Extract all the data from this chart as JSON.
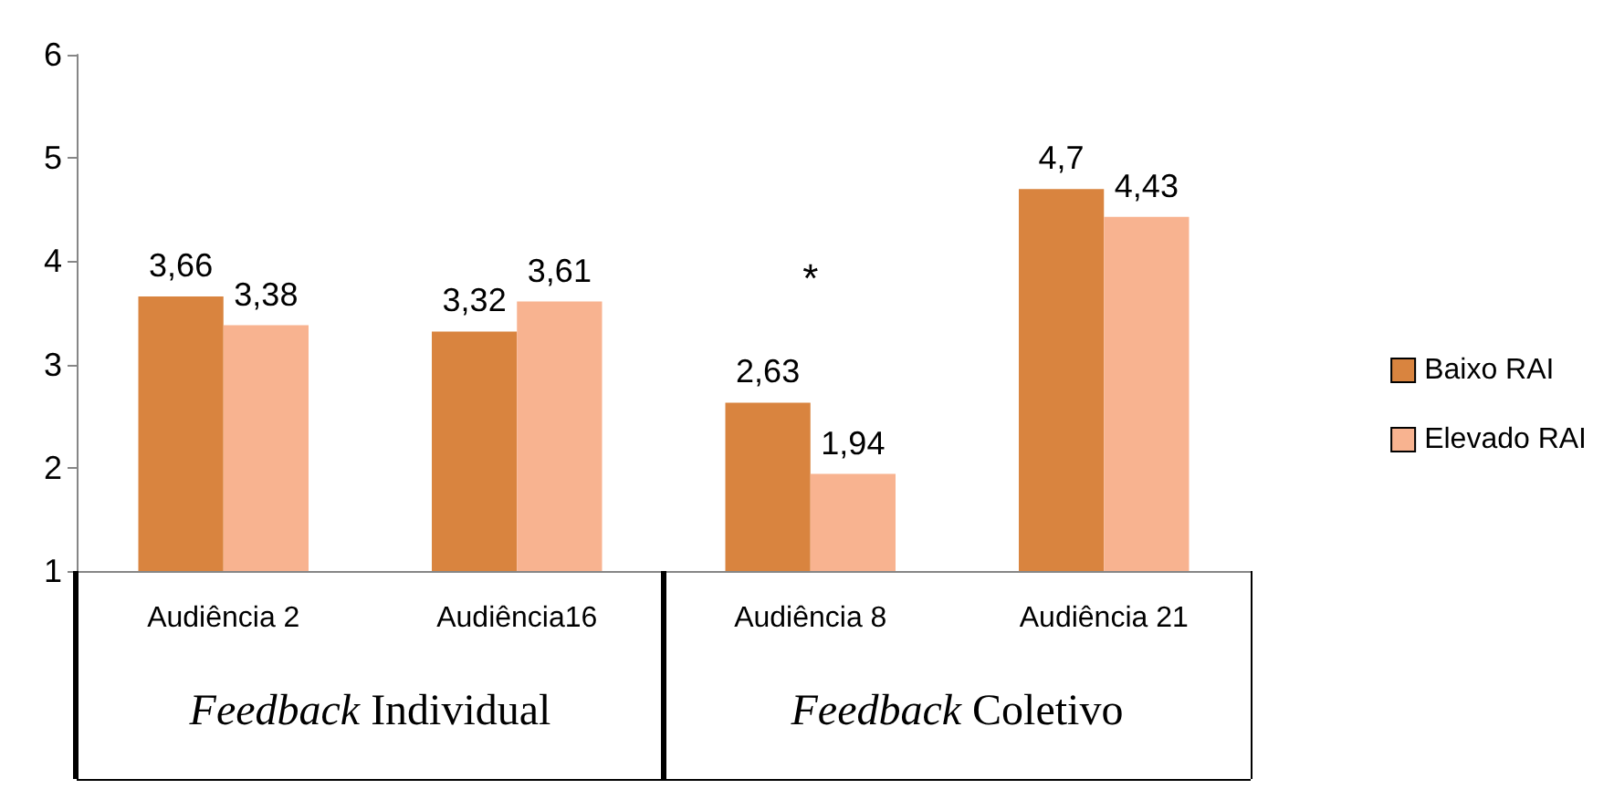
{
  "chart_data": {
    "type": "bar",
    "categories": [
      "Audiência 2",
      "Audiência16",
      "Audiência 8",
      "Audiência 21"
    ],
    "series": [
      {
        "name": "Baixo RAI",
        "color": "#d9843f",
        "values": [
          3.66,
          3.32,
          2.63,
          4.7
        ],
        "value_labels": [
          "3,66",
          "3,32",
          "2,63",
          "4,7"
        ]
      },
      {
        "name": "Elevado RAI",
        "color": "#f8b390",
        "values": [
          3.38,
          3.61,
          1.94,
          4.43
        ],
        "value_labels": [
          "3,38",
          "3,61",
          "1,94",
          "4,43"
        ]
      }
    ],
    "ylim": [
      1,
      6
    ],
    "yticks": [
      1,
      2,
      3,
      4,
      5,
      6
    ],
    "grid": false,
    "legend": "right",
    "annotations": [
      "Feedback Individual",
      "Feedback Coletivo",
      "*"
    ]
  }
}
